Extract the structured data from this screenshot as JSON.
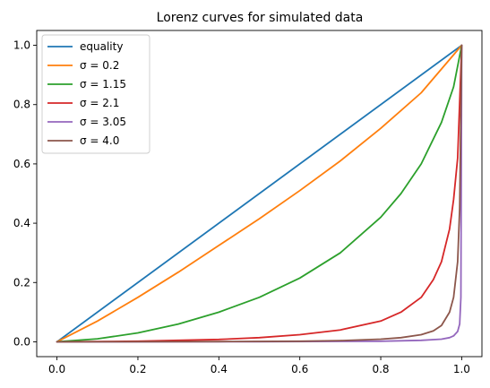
{
  "chart_data": {
    "type": "line",
    "title": "Lorenz curves for simulated data",
    "xlabel": "",
    "ylabel": "",
    "xlim": [
      -0.05,
      1.05
    ],
    "ylim": [
      -0.05,
      1.05
    ],
    "x_ticks": [
      0.0,
      0.2,
      0.4,
      0.6,
      0.8,
      1.0
    ],
    "y_ticks": [
      0.0,
      0.2,
      0.4,
      0.6,
      0.8,
      1.0
    ],
    "x_tick_labels": [
      "0.0",
      "0.2",
      "0.4",
      "0.6",
      "0.8",
      "1.0"
    ],
    "y_tick_labels": [
      "0.0",
      "0.2",
      "0.4",
      "0.6",
      "0.8",
      "1.0"
    ],
    "grid": false,
    "legend_position": "top-left",
    "series": [
      {
        "name": "equality",
        "color": "#1f77b4",
        "x": [
          0,
          1
        ],
        "y": [
          0,
          1
        ]
      },
      {
        "name": "σ = 0.2",
        "color": "#ff7f0e",
        "x": [
          0,
          0.1,
          0.2,
          0.3,
          0.4,
          0.5,
          0.6,
          0.7,
          0.8,
          0.9,
          1.0
        ],
        "y": [
          0,
          0.07,
          0.15,
          0.235,
          0.325,
          0.415,
          0.51,
          0.61,
          0.72,
          0.84,
          1.0
        ]
      },
      {
        "name": "σ = 1.15",
        "color": "#2ca02c",
        "x": [
          0,
          0.1,
          0.2,
          0.3,
          0.4,
          0.5,
          0.6,
          0.7,
          0.8,
          0.85,
          0.9,
          0.95,
          0.98,
          1.0
        ],
        "y": [
          0,
          0.01,
          0.03,
          0.06,
          0.1,
          0.15,
          0.215,
          0.3,
          0.42,
          0.5,
          0.6,
          0.74,
          0.86,
          1.0
        ]
      },
      {
        "name": "σ = 2.1",
        "color": "#d62728",
        "x": [
          0,
          0.2,
          0.4,
          0.5,
          0.6,
          0.7,
          0.8,
          0.85,
          0.9,
          0.93,
          0.95,
          0.97,
          0.98,
          0.99,
          1.0
        ],
        "y": [
          0,
          0.002,
          0.008,
          0.014,
          0.024,
          0.04,
          0.07,
          0.1,
          0.15,
          0.21,
          0.27,
          0.38,
          0.48,
          0.62,
          1.0
        ]
      },
      {
        "name": "σ = 3.05",
        "color": "#9467bd",
        "x": [
          0,
          0.5,
          0.8,
          0.9,
          0.95,
          0.97,
          0.98,
          0.99,
          0.995,
          0.998,
          1.0
        ],
        "y": [
          0,
          0.0003,
          0.002,
          0.005,
          0.009,
          0.014,
          0.02,
          0.035,
          0.06,
          0.15,
          1.0
        ]
      },
      {
        "name": "σ = 4.0",
        "color": "#8c564b",
        "x": [
          0,
          0.4,
          0.6,
          0.7,
          0.8,
          0.85,
          0.9,
          0.93,
          0.95,
          0.97,
          0.98,
          0.99,
          0.995,
          1.0
        ],
        "y": [
          0,
          0.0008,
          0.002,
          0.004,
          0.009,
          0.014,
          0.024,
          0.037,
          0.055,
          0.1,
          0.15,
          0.27,
          0.45,
          1.0
        ]
      }
    ]
  }
}
